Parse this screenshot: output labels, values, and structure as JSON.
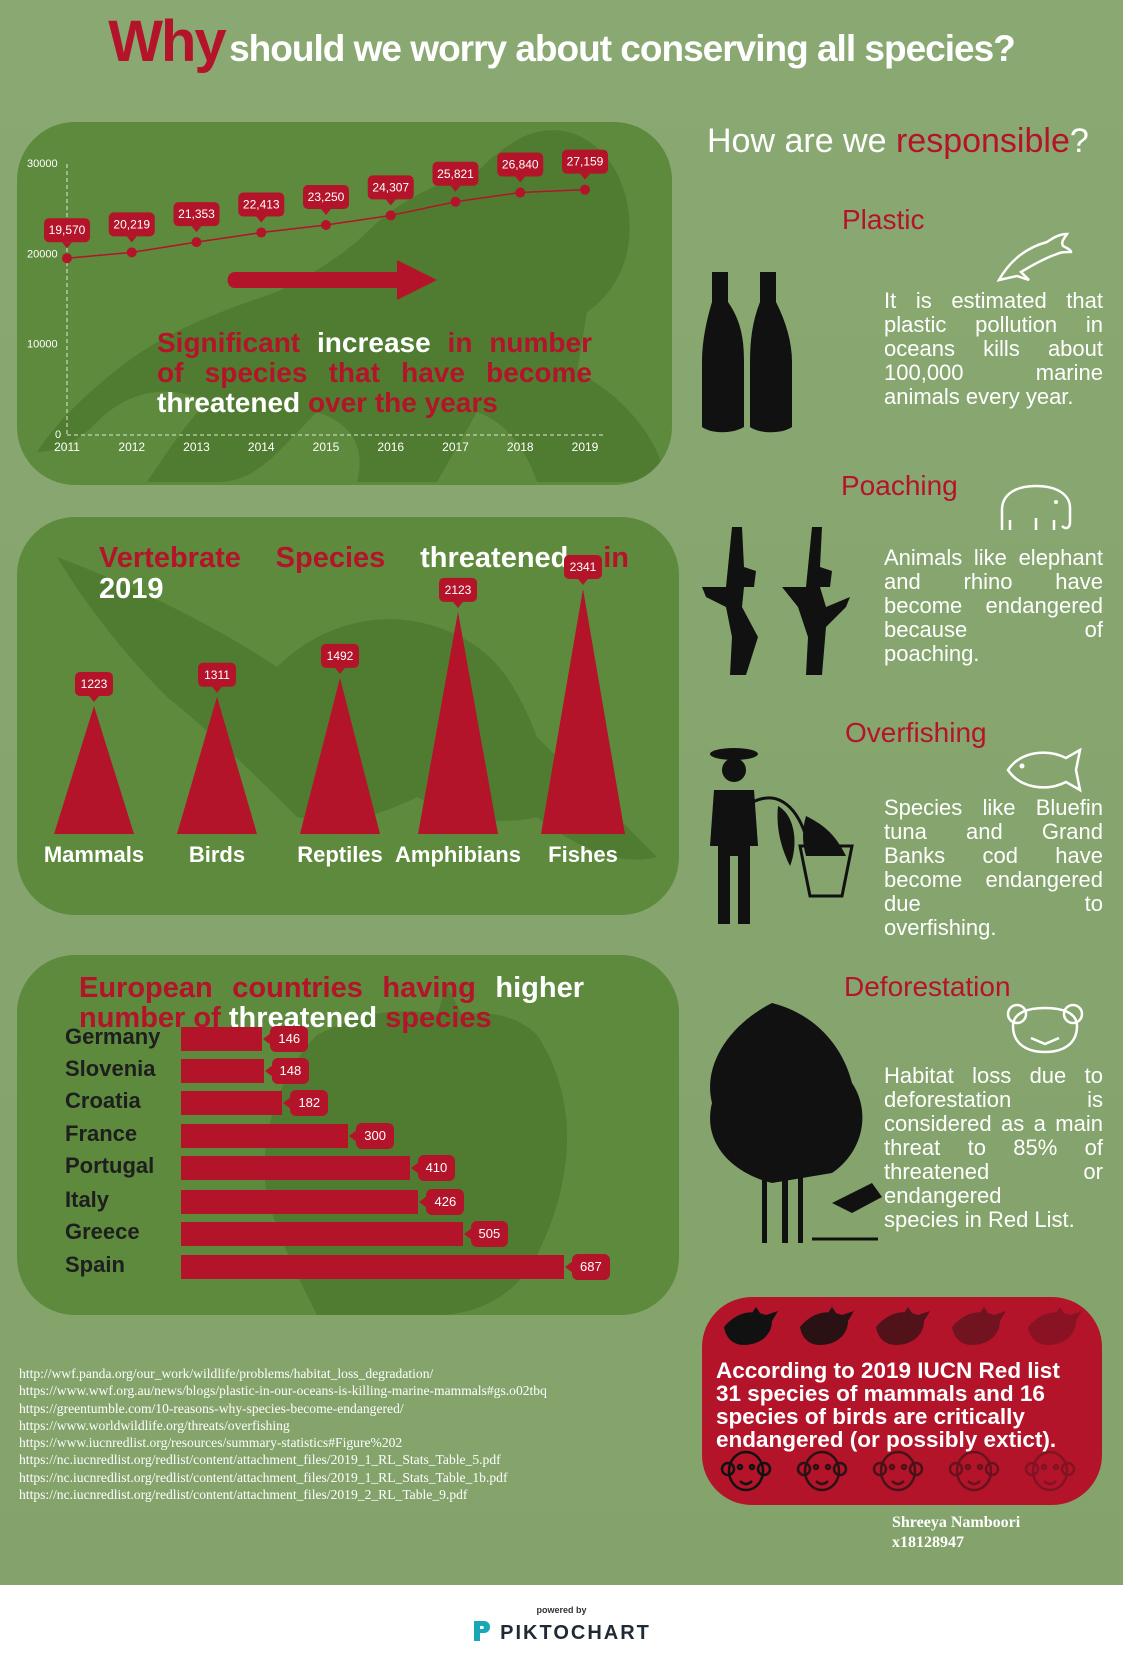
{
  "title": {
    "why": "Why",
    "rest": "should we worry about conserving all species?"
  },
  "line_chart": {
    "caption": [
      [
        {
          "t": "Significant ",
          "c": "red"
        },
        {
          "t": "increase ",
          "c": "white"
        },
        {
          "t": "in number",
          "c": "red"
        }
      ],
      [
        {
          "t": "of species that have become",
          "c": "red"
        }
      ],
      [
        {
          "t": "threatened ",
          "c": "white"
        },
        {
          "t": "over the years",
          "c": "red"
        }
      ]
    ],
    "y_ticks": [
      "0",
      "10000",
      "20000",
      "30000"
    ]
  },
  "chart_data": [
    {
      "type": "line",
      "title": "Significant increase in number of species that have become threatened over the years",
      "x": [
        "2011",
        "2012",
        "2013",
        "2014",
        "2015",
        "2016",
        "2017",
        "2018",
        "2019"
      ],
      "values": [
        19570,
        20219,
        21353,
        22413,
        23250,
        24307,
        25821,
        26840,
        27159
      ],
      "labels": [
        "19,570",
        "20,219",
        "21,353",
        "22,413",
        "23,250",
        "24,307",
        "25,821",
        "26,840",
        "27,159"
      ],
      "ylim": [
        0,
        30000
      ]
    },
    {
      "type": "bar",
      "title": "Vertebrate Species threatened in 2019",
      "categories": [
        "Mammals",
        "Birds",
        "Reptiles",
        "Amphibians",
        "Fishes"
      ],
      "values": [
        1223,
        1311,
        1492,
        2123,
        2341
      ]
    },
    {
      "type": "bar",
      "title": "European countries having higher number of threatened species",
      "categories": [
        "Germany",
        "Slovenia",
        "Croatia",
        "France",
        "Portugal",
        "Italy",
        "Greece",
        "Spain"
      ],
      "values": [
        146,
        148,
        182,
        300,
        410,
        426,
        505,
        687
      ]
    }
  ],
  "vertebrate": {
    "title_line1": [
      "Vertebrate",
      "Species",
      "threatened",
      "in"
    ],
    "title_line2": "2019"
  },
  "europe": {
    "title_line1": [
      "European",
      "countries",
      "having",
      "higher"
    ],
    "title_line2": [
      {
        "t": "number of ",
        "c": "red"
      },
      {
        "t": "threatened ",
        "c": "white"
      },
      {
        "t": "species",
        "c": "red"
      }
    ]
  },
  "responsible": {
    "prefix": "How are we ",
    "highlight": "responsible",
    "suffix": "?"
  },
  "causes": [
    {
      "title": "Plastic",
      "icon": "dolphin-icon",
      "text": "It is estimated that plastic pollution in oceans kills about 100,000 marine",
      "last": "animals every year."
    },
    {
      "title": "Poaching",
      "icon": "elephant-icon",
      "text": "Animals like elephant and rhino have become endangered because of",
      "last": "poaching."
    },
    {
      "title": "Overfishing",
      "icon": "fish-icon",
      "text": "Species like Bluefin tuna and Grand Banks cod have become endangered due to",
      "last": "overfishing."
    },
    {
      "title": "Deforestation",
      "icon": "bear-icon",
      "text": "Habitat loss due to deforestation is considered as a main threat to 85% of threatened or endangered",
      "last": "species in Red List."
    }
  ],
  "redlist": {
    "text": "According to 2019 IUCN Red list 31 species of mammals and 16 species of birds are critically endangered (or possibly extict)."
  },
  "author": {
    "name": "Shreeya Namboori",
    "id": "x18128947"
  },
  "sources": [
    "http://wwf.panda.org/our_work/wildlife/problems/habitat_loss_degradation/",
    "https://www.wwf.org.au/news/blogs/plastic-in-our-oceans-is-killing-marine-mammals#gs.o02tbq",
    "https://greentumble.com/10-reasons-why-species-become-endangered/",
    "https://www.worldwildlife.org/threats/overfishing",
    "https://www.iucnredlist.org/resources/summary-statistics#Figure%202",
    "https://nc.iucnredlist.org/redlist/content/attachment_files/2019_1_RL_Stats_Table_5.pdf",
    "https://nc.iucnredlist.org/redlist/content/attachment_files/2019_1_RL_Stats_Table_1b.pdf",
    "https://nc.iucnredlist.org/redlist/content/attachment_files/2019_2_RL_Table_9.pdf"
  ],
  "footer": {
    "powered": "powered by",
    "brand": "PIKTOCHART"
  },
  "colors": {
    "red": "#b3142a",
    "panel": "#5d8a3c",
    "bg": "#87a66f"
  }
}
